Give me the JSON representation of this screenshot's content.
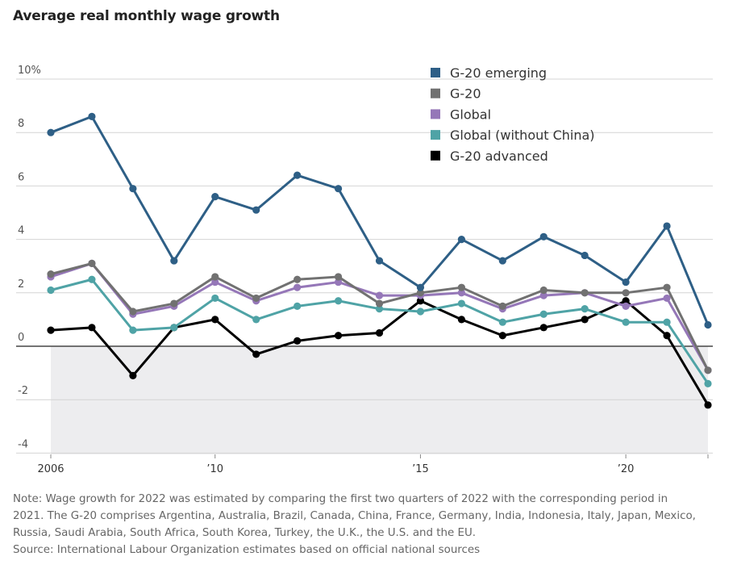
{
  "chart_data": {
    "type": "line",
    "title": "Average real monthly wage growth",
    "xlabel": "",
    "ylabel": "",
    "ylim": [
      -4,
      10
    ],
    "xlim": [
      2006,
      2022
    ],
    "grid": true,
    "legend_position": "top-right",
    "x": [
      2006,
      2007,
      2008,
      2009,
      2010,
      2011,
      2012,
      2013,
      2014,
      2015,
      2016,
      2017,
      2018,
      2019,
      2020,
      2021,
      2022
    ],
    "y_ticks": [
      {
        "value": 10,
        "label": "10%"
      },
      {
        "value": 8,
        "label": "8"
      },
      {
        "value": 6,
        "label": "6"
      },
      {
        "value": 4,
        "label": "4"
      },
      {
        "value": 2,
        "label": "2"
      },
      {
        "value": 0,
        "label": "0"
      },
      {
        "value": -2,
        "label": "-2"
      },
      {
        "value": -4,
        "label": "-4"
      }
    ],
    "x_ticks": [
      {
        "value": 2006,
        "label": "2006"
      },
      {
        "value": 2010,
        "label": "’10"
      },
      {
        "value": 2015,
        "label": "’15"
      },
      {
        "value": 2020,
        "label": "’20"
      }
    ],
    "series": [
      {
        "name": "G-20 emerging",
        "color": "#2e5f86",
        "values": [
          8.0,
          8.6,
          5.9,
          3.2,
          5.6,
          5.1,
          6.4,
          5.9,
          3.2,
          2.2,
          4.0,
          3.2,
          4.1,
          3.4,
          2.4,
          4.5,
          0.8
        ]
      },
      {
        "name": "G-20",
        "color": "#717171",
        "values": [
          2.7,
          3.1,
          1.3,
          1.6,
          2.6,
          1.8,
          2.5,
          2.6,
          1.6,
          2.0,
          2.2,
          1.5,
          2.1,
          2.0,
          2.0,
          2.2,
          -0.9
        ]
      },
      {
        "name": "Global",
        "color": "#9577b8",
        "values": [
          2.6,
          3.1,
          1.2,
          1.5,
          2.4,
          1.7,
          2.2,
          2.4,
          1.9,
          1.9,
          2.0,
          1.4,
          1.9,
          2.0,
          1.5,
          1.8,
          -0.9
        ]
      },
      {
        "name": "Global (without China)",
        "color": "#4fa3a6",
        "values": [
          2.1,
          2.5,
          0.6,
          0.7,
          1.8,
          1.0,
          1.5,
          1.7,
          1.4,
          1.3,
          1.6,
          0.9,
          1.2,
          1.4,
          0.9,
          0.9,
          -1.4
        ]
      },
      {
        "name": "G-20 advanced",
        "color": "#000000",
        "values": [
          0.6,
          0.7,
          -1.1,
          0.7,
          1.0,
          -0.3,
          0.2,
          0.4,
          0.5,
          1.7,
          1.0,
          0.4,
          0.7,
          1.0,
          1.7,
          0.4,
          -2.2
        ]
      }
    ],
    "negative_region_color": "#ededef"
  },
  "notes": {
    "line1": "Note: Wage growth for 2022 was estimated by comparing the first two quarters of 2022 with the corresponding period in",
    "line2": "2021. The G-20 comprises Argentina, Australia, Brazil, Canada, China, France, Germany, India, Indonesia, Italy, Japan, Mexico,",
    "line3": "Russia, Saudi Arabia, South Africa, South Korea, Turkey, the U.K., the U.S. and the EU.",
    "source": "Source: International Labour Organization estimates based on official national sources"
  }
}
